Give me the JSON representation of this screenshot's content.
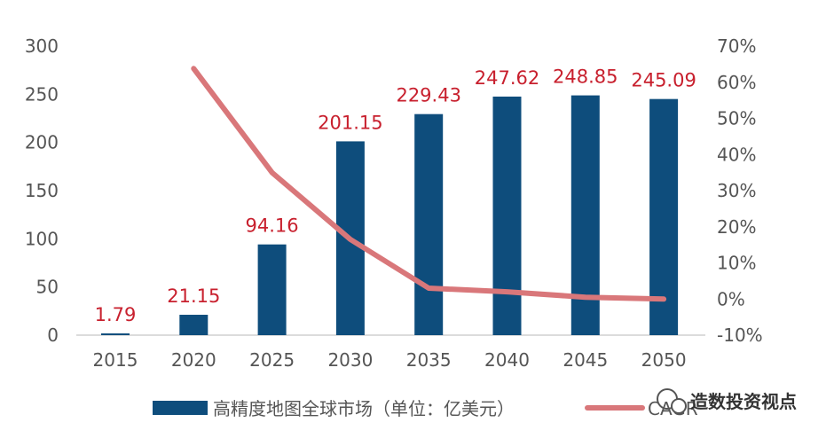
{
  "chart_data": {
    "type": "bar",
    "categories": [
      "2015",
      "2020",
      "2025",
      "2030",
      "2035",
      "2040",
      "2045",
      "2050"
    ],
    "series": [
      {
        "name": "高精度地图全球市场（单位：亿美元）",
        "type": "bar",
        "axis": "left",
        "color": "#0e4d7c",
        "values": [
          1.79,
          21.15,
          94.16,
          201.15,
          229.43,
          247.62,
          248.85,
          245.09
        ],
        "labels": [
          "1.79",
          "21.15",
          "94.16",
          "201.15",
          "229.43",
          "247.62",
          "248.85",
          "245.09"
        ]
      },
      {
        "name": "CAGR",
        "type": "line",
        "axis": "right",
        "color": "#d9777a",
        "values": [
          null,
          0.638,
          0.35,
          0.165,
          0.03,
          0.02,
          0.005,
          0.0
        ]
      }
    ],
    "y_left": {
      "min": 0,
      "max": 300,
      "ticks": [
        "0",
        "50",
        "100",
        "150",
        "200",
        "250",
        "300"
      ]
    },
    "y_right": {
      "min": -0.1,
      "max": 0.7,
      "ticks": [
        "-10%",
        "0%",
        "10%",
        "20%",
        "30%",
        "40%",
        "50%",
        "60%",
        "70%"
      ]
    },
    "label_color": "#c8202e",
    "grid": false,
    "legend_position": "bottom",
    "watermark": "造数投资视点"
  }
}
